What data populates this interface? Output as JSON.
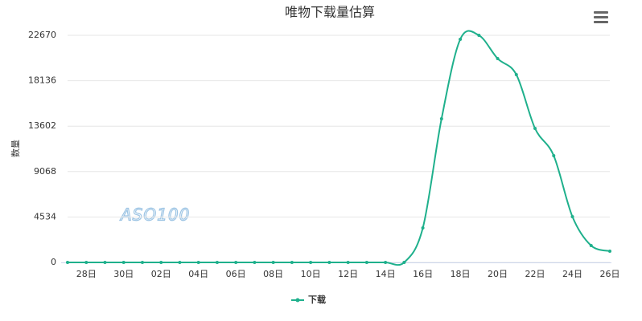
{
  "chart_data": {
    "type": "line",
    "title": "唯物下载量估算",
    "y_label": "数量",
    "watermark": "ASO100",
    "categories": [
      null,
      "28日",
      null,
      "30日",
      null,
      "02日",
      null,
      "04日",
      null,
      "06日",
      null,
      "08日",
      null,
      "10日",
      null,
      "12日",
      null,
      "14日",
      null,
      "16日",
      null,
      "18日",
      null,
      "20日",
      null,
      "22日",
      null,
      "24日",
      null,
      "26日"
    ],
    "series": [
      {
        "name": "下载",
        "color": "#1fb08c",
        "values": [
          0,
          0,
          0,
          0,
          0,
          0,
          0,
          0,
          0,
          0,
          0,
          0,
          0,
          0,
          0,
          0,
          0,
          0,
          0,
          3444,
          14339,
          22270,
          22670,
          20347,
          18745,
          13378,
          10654,
          4566,
          1682,
          1121
        ]
      }
    ],
    "ylim": [
      0,
      22670
    ],
    "yticks": [
      0,
      4534,
      9068,
      13602,
      18136,
      22670
    ],
    "grid": true,
    "legend": "bottom"
  }
}
